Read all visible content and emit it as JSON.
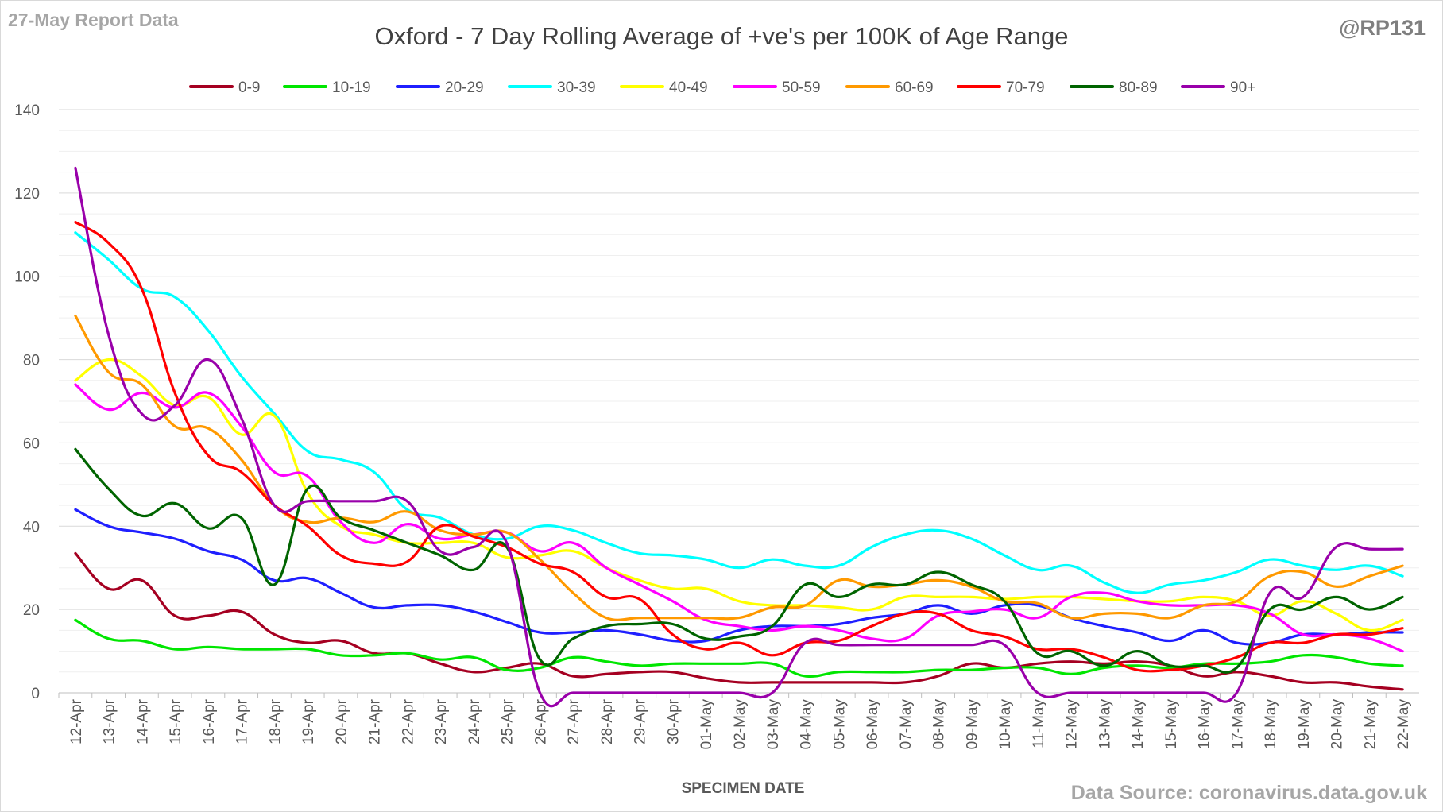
{
  "header": {
    "report_date": "27-May Report Data",
    "handle": "@RP131",
    "title": "Oxford - 7 Day Rolling Average of +ve's per 100K of Age Range"
  },
  "footer": {
    "source": "Data Source: coronavirus.data.gov.uk"
  },
  "chart_data": {
    "type": "line",
    "title": "Oxford - 7 Day Rolling Average of +ve's per 100K of Age Range",
    "xlabel": "SPECIMEN DATE",
    "ylabel": "",
    "ylim": [
      0,
      140
    ],
    "yticks": [
      0,
      20,
      40,
      60,
      80,
      100,
      120,
      140
    ],
    "grid": true,
    "legend_position": "top",
    "categories": [
      "12-Apr",
      "13-Apr",
      "14-Apr",
      "15-Apr",
      "16-Apr",
      "17-Apr",
      "18-Apr",
      "19-Apr",
      "20-Apr",
      "21-Apr",
      "22-Apr",
      "23-Apr",
      "24-Apr",
      "25-Apr",
      "26-Apr",
      "27-Apr",
      "28-Apr",
      "29-Apr",
      "30-Apr",
      "01-May",
      "02-May",
      "03-May",
      "04-May",
      "05-May",
      "06-May",
      "07-May",
      "08-May",
      "09-May",
      "10-May",
      "11-May",
      "12-May",
      "13-May",
      "14-May",
      "15-May",
      "16-May",
      "17-May",
      "18-May",
      "19-May",
      "20-May",
      "21-May",
      "22-May"
    ],
    "series": [
      {
        "name": "0-9",
        "color": "#a50021",
        "values": [
          33.5,
          25,
          27,
          18.5,
          18.5,
          19.5,
          14,
          12,
          12.5,
          9.5,
          9.5,
          7,
          5,
          6,
          7,
          4,
          4.5,
          5,
          5,
          3.5,
          2.5,
          2.5,
          2.5,
          2.5,
          2.5,
          2.5,
          4,
          7,
          6,
          7,
          7.5,
          7,
          7.5,
          6.5,
          4,
          5,
          4,
          2.5,
          2.5,
          1.5,
          0.8
        ]
      },
      {
        "name": "10-19",
        "color": "#00e600",
        "values": [
          17.5,
          13,
          12.5,
          10.5,
          11,
          10.5,
          10.5,
          10.5,
          9,
          9,
          9.5,
          8,
          8.5,
          5.5,
          6,
          8.5,
          7.5,
          6.5,
          7,
          7,
          7,
          7,
          4,
          5,
          5,
          5,
          5.5,
          5.5,
          6,
          6,
          4.5,
          6,
          6.5,
          6,
          7,
          7,
          7.5,
          9,
          8.5,
          7,
          6.5
        ]
      },
      {
        "name": "20-29",
        "color": "#1f1fff",
        "values": [
          44,
          40,
          38.5,
          37,
          34,
          32,
          27,
          27.5,
          24,
          20.5,
          21,
          21,
          19.5,
          17,
          14.5,
          14.5,
          15,
          14,
          12.5,
          12.5,
          15,
          16,
          16,
          16.5,
          18,
          19,
          21,
          19,
          21,
          21,
          18,
          16,
          14.5,
          12.5,
          15,
          12,
          12,
          14,
          14,
          14.5,
          14.5
        ]
      },
      {
        "name": "30-39",
        "color": "#00ffff",
        "values": [
          110.5,
          104,
          97,
          95,
          87,
          76,
          67,
          58,
          56,
          53,
          44,
          42,
          38,
          37,
          40,
          39,
          36,
          33.5,
          33,
          32,
          30,
          32,
          30.5,
          30.5,
          35,
          38,
          39,
          37,
          33,
          29.5,
          30.5,
          26.5,
          24,
          26,
          27,
          29,
          32,
          30.5,
          29.5,
          30.5,
          28
        ]
      },
      {
        "name": "40-49",
        "color": "#ffff00",
        "values": [
          75,
          80,
          76,
          69,
          71,
          62,
          66.5,
          48,
          40,
          38,
          36,
          36,
          36,
          32.5,
          33,
          34,
          30,
          27,
          25,
          25,
          22,
          21,
          21,
          20.5,
          20,
          23,
          23,
          23,
          22.5,
          23,
          23,
          22.5,
          22,
          22,
          23,
          22,
          18.5,
          22,
          19,
          15,
          17.5
        ]
      },
      {
        "name": "50-59",
        "color": "#ff00ff",
        "values": [
          74,
          68,
          72,
          68.5,
          72,
          64,
          53,
          52,
          41,
          36,
          40.5,
          37,
          38,
          38.5,
          34,
          36,
          30,
          26,
          22,
          17.5,
          16,
          15,
          16,
          15,
          13,
          13,
          18.5,
          19.5,
          20,
          18,
          23,
          24,
          22,
          21,
          21,
          21,
          19,
          14,
          14,
          13,
          10
        ]
      },
      {
        "name": "60-69",
        "color": "#ff9900",
        "values": [
          90.5,
          77,
          74,
          64,
          63.5,
          56,
          45,
          41,
          42,
          41,
          43.5,
          39,
          38,
          38.5,
          32,
          24,
          18,
          18,
          18,
          18,
          18,
          20.5,
          21,
          27,
          25.5,
          26,
          27,
          25.5,
          22,
          21.5,
          18,
          19,
          19,
          18,
          21,
          22,
          28,
          29,
          25.5,
          28,
          30.5
        ]
      },
      {
        "name": "70-79",
        "color": "#ff0000",
        "values": [
          113,
          108,
          97,
          72,
          57,
          53,
          45,
          40,
          33,
          31,
          31.5,
          40,
          37.5,
          35,
          31,
          29,
          23,
          22.5,
          14,
          10.5,
          12,
          9,
          12,
          12.5,
          16,
          19,
          19,
          15,
          13.5,
          10.5,
          10.5,
          8.5,
          5.5,
          5.5,
          6.5,
          8.5,
          12,
          12,
          14,
          14,
          15.5
        ]
      },
      {
        "name": "80-89",
        "color": "#006400",
        "values": [
          58.5,
          49,
          42.5,
          45.5,
          39.5,
          42,
          26,
          49,
          42,
          39,
          36,
          33,
          29.5,
          35,
          8,
          13,
          16,
          16.5,
          16.5,
          13,
          13.5,
          16,
          26,
          23,
          26,
          26,
          29,
          26,
          22,
          9.5,
          10,
          6.5,
          10,
          6.5,
          6.5,
          6,
          20,
          20,
          23,
          20,
          23
        ]
      },
      {
        "name": "90+",
        "color": "#9900aa",
        "values": [
          126,
          86,
          67,
          69,
          80,
          66,
          45,
          46,
          46,
          46,
          46,
          34,
          35,
          36,
          0,
          0,
          0,
          0,
          0,
          0,
          0,
          0,
          12,
          11.5,
          11.5,
          11.5,
          11.5,
          11.5,
          11.5,
          0,
          0,
          0,
          0,
          0,
          0,
          0,
          24,
          23,
          35,
          34.5,
          34.5
        ]
      }
    ]
  }
}
